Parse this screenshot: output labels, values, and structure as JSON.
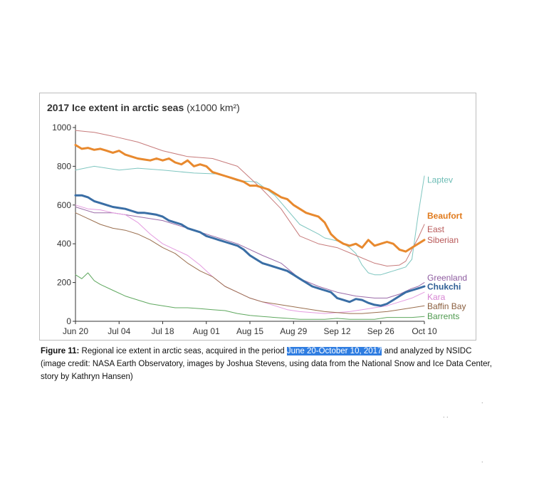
{
  "chart_data": {
    "type": "line",
    "title": "2017 Ice extent in arctic seas",
    "title_unit": "(x1000 km²)",
    "x_ticks": [
      "Jun 20",
      "Jul 04",
      "Jul 18",
      "Aug 01",
      "Aug 15",
      "Aug 29",
      "Sep 12",
      "Sep 26",
      "Oct 10"
    ],
    "y_ticks": [
      0,
      200,
      400,
      600,
      800,
      1000
    ],
    "xlim": [
      0,
      112
    ],
    "ylim": [
      0,
      1000
    ],
    "grid": false,
    "legend": "right-end labels",
    "series": [
      {
        "name": "Laptev",
        "color": "#7fc6c0",
        "width": 1,
        "x": [
          0,
          6,
          14,
          20,
          28,
          38,
          46,
          52,
          58,
          64,
          72,
          78,
          80,
          84,
          86,
          88,
          90,
          92,
          94,
          96,
          98,
          100,
          102,
          104,
          106,
          108,
          110,
          112
        ],
        "y": [
          780,
          800,
          780,
          790,
          780,
          765,
          760,
          725,
          720,
          650,
          500,
          450,
          430,
          415,
          400,
          380,
          350,
          290,
          250,
          240,
          240,
          250,
          260,
          270,
          280,
          320,
          550,
          750
        ]
      },
      {
        "name": "Beaufort",
        "color": "#e8892e",
        "width": 3,
        "x": [
          0,
          2,
          4,
          6,
          8,
          10,
          12,
          14,
          16,
          18,
          20,
          22,
          24,
          26,
          28,
          30,
          32,
          34,
          36,
          38,
          40,
          42,
          44,
          46,
          48,
          50,
          52,
          54,
          56,
          58,
          60,
          62,
          64,
          66,
          68,
          70,
          72,
          74,
          76,
          78,
          80,
          82,
          84,
          86,
          88,
          90,
          92,
          94,
          96,
          98,
          100,
          102,
          104,
          106,
          108,
          110,
          112
        ],
        "y": [
          910,
          890,
          895,
          885,
          890,
          880,
          870,
          880,
          860,
          850,
          840,
          835,
          830,
          840,
          830,
          840,
          820,
          810,
          830,
          800,
          810,
          800,
          770,
          760,
          750,
          740,
          730,
          720,
          700,
          700,
          690,
          680,
          660,
          640,
          630,
          600,
          580,
          560,
          550,
          540,
          510,
          450,
          420,
          400,
          390,
          400,
          380,
          420,
          390,
          400,
          410,
          400,
          370,
          360,
          380,
          400,
          420
        ]
      },
      {
        "name": "East Siberian",
        "color": "#c77b7b",
        "width": 1,
        "x": [
          0,
          6,
          12,
          20,
          28,
          36,
          44,
          52,
          60,
          66,
          72,
          78,
          84,
          90,
          96,
          100,
          104,
          106,
          108,
          110,
          112
        ],
        "y": [
          985,
          975,
          955,
          925,
          880,
          850,
          840,
          800,
          680,
          580,
          440,
          400,
          380,
          340,
          300,
          285,
          290,
          310,
          370,
          430,
          500
        ]
      },
      {
        "name": "Greenland",
        "color": "#9b6ba8",
        "width": 1,
        "x": [
          0,
          6,
          12,
          20,
          28,
          36,
          44,
          52,
          60,
          66,
          72,
          78,
          84,
          90,
          96,
          100,
          104,
          108,
          110,
          112
        ],
        "y": [
          590,
          560,
          560,
          540,
          520,
          480,
          440,
          400,
          340,
          300,
          220,
          180,
          150,
          130,
          120,
          120,
          140,
          170,
          180,
          200
        ]
      },
      {
        "name": "Chukchi",
        "color": "#3a6ea5",
        "width": 3,
        "x": [
          0,
          2,
          4,
          6,
          8,
          10,
          12,
          14,
          16,
          18,
          20,
          22,
          24,
          26,
          28,
          30,
          32,
          34,
          36,
          38,
          40,
          42,
          44,
          46,
          48,
          50,
          52,
          54,
          56,
          58,
          60,
          62,
          64,
          66,
          68,
          70,
          72,
          74,
          76,
          78,
          80,
          82,
          84,
          86,
          88,
          90,
          92,
          94,
          96,
          98,
          100,
          102,
          104,
          106,
          108,
          110,
          112
        ],
        "y": [
          650,
          650,
          640,
          620,
          610,
          600,
          590,
          585,
          580,
          570,
          560,
          560,
          555,
          550,
          540,
          520,
          510,
          500,
          480,
          470,
          460,
          440,
          430,
          420,
          410,
          400,
          390,
          370,
          340,
          320,
          300,
          290,
          280,
          270,
          260,
          240,
          220,
          200,
          180,
          170,
          160,
          150,
          120,
          110,
          100,
          115,
          110,
          95,
          85,
          80,
          90,
          110,
          130,
          150,
          160,
          170,
          180
        ]
      },
      {
        "name": "Kara",
        "color": "#e49be0",
        "width": 1,
        "x": [
          0,
          4,
          8,
          12,
          16,
          20,
          24,
          28,
          32,
          36,
          40,
          44,
          48,
          52,
          56,
          60,
          64,
          68,
          72,
          76,
          80,
          84,
          88,
          92,
          96,
          100,
          104,
          108,
          112
        ],
        "y": [
          600,
          580,
          575,
          560,
          550,
          510,
          450,
          400,
          370,
          340,
          290,
          230,
          180,
          150,
          120,
          100,
          80,
          60,
          50,
          45,
          40,
          45,
          50,
          60,
          70,
          80,
          100,
          120,
          150
        ]
      },
      {
        "name": "Baffin Bay",
        "color": "#9a6e4e",
        "width": 1,
        "x": [
          0,
          4,
          8,
          12,
          16,
          20,
          24,
          28,
          32,
          36,
          40,
          44,
          48,
          52,
          56,
          60,
          64,
          68,
          72,
          76,
          80,
          84,
          88,
          92,
          96,
          100,
          104,
          108,
          112
        ],
        "y": [
          560,
          530,
          500,
          480,
          470,
          450,
          420,
          380,
          350,
          300,
          260,
          230,
          180,
          150,
          120,
          100,
          90,
          80,
          70,
          60,
          50,
          45,
          40,
          40,
          45,
          50,
          60,
          70,
          80
        ]
      },
      {
        "name": "Barrents",
        "color": "#5fa85f",
        "width": 1,
        "x": [
          0,
          2,
          4,
          6,
          8,
          12,
          16,
          20,
          24,
          28,
          32,
          36,
          40,
          44,
          48,
          52,
          56,
          60,
          64,
          68,
          72,
          76,
          80,
          84,
          88,
          92,
          96,
          100,
          104,
          108,
          112
        ],
        "y": [
          240,
          220,
          250,
          210,
          190,
          160,
          130,
          110,
          90,
          80,
          70,
          70,
          65,
          60,
          55,
          40,
          30,
          25,
          20,
          15,
          10,
          10,
          10,
          15,
          10,
          10,
          10,
          20,
          20,
          20,
          25
        ]
      }
    ],
    "end_labels": [
      {
        "text": "Laptev",
        "color": "#6cbcb5",
        "bold": false,
        "y": 730
      },
      {
        "text": "Beaufort",
        "color": "#e07a1c",
        "bold": true,
        "y": 545
      },
      {
        "text": "East",
        "color": "#b85858",
        "bold": false,
        "y": 475
      },
      {
        "text": "Siberian",
        "color": "#b85858",
        "bold": false,
        "y": 420
      },
      {
        "text": "Greenland",
        "color": "#8e5ca0",
        "bold": false,
        "y": 225
      },
      {
        "text": "Chukchi",
        "color": "#2f5f95",
        "bold": true,
        "y": 178
      },
      {
        "text": "Kara",
        "color": "#d784d3",
        "bold": false,
        "y": 125
      },
      {
        "text": "Baffin Bay",
        "color": "#8a5e3e",
        "bold": false,
        "y": 78
      },
      {
        "text": "Barrents",
        "color": "#4f9a4f",
        "bold": false,
        "y": 25
      }
    ]
  },
  "caption": {
    "figure_label": "Figure 11:",
    "text_before": " Regional ice extent in arctic seas, acquired in the period ",
    "highlight": "June 20-October 10, 2017",
    "text_after": " and analyzed by NSIDC (image credit: NASA Earth Observatory, images by Joshua Stevens, using data from the National Snow and Ice Data Center, story by Kathryn Hansen)"
  }
}
